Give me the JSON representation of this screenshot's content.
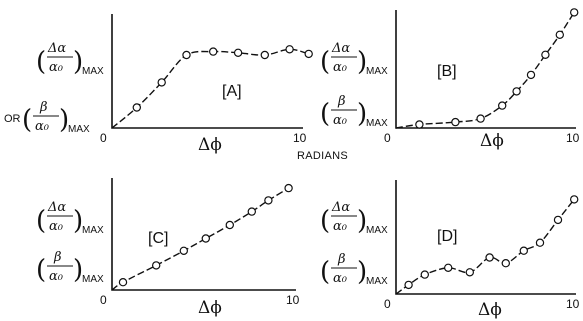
{
  "shared_axis_text": "RADIANS",
  "y_label_parts": {
    "alpha_num": "Δα",
    "alpha_den": "α₀",
    "beta_num": "β",
    "beta_den": "α₀",
    "max": "MAX",
    "or": "OR"
  },
  "chart_data": [
    {
      "type": "line",
      "tag": "[A]",
      "xlabel": "Δϕ",
      "x_tick_labels": [
        "0",
        "10"
      ],
      "xlim": [
        0,
        10
      ],
      "ylim": [
        0,
        1
      ],
      "grid": false,
      "series": [
        {
          "x": [
            0,
            1.3,
            2.6,
            3.9,
            5.3,
            6.6,
            8.0,
            9.3,
            10.3
          ],
          "y": [
            0,
            0.18,
            0.4,
            0.64,
            0.67,
            0.66,
            0.64,
            0.69,
            0.65
          ]
        }
      ]
    },
    {
      "type": "line",
      "tag": "[B]",
      "xlabel": "Δϕ",
      "x_tick_labels": [
        "0",
        "10"
      ],
      "xlim": [
        0,
        10
      ],
      "ylim": [
        0,
        1
      ],
      "grid": false,
      "series": [
        {
          "x": [
            0,
            1.3,
            3.3,
            4.7,
            5.9,
            6.7,
            7.5,
            8.3,
            9.1,
            9.9
          ],
          "y": [
            0,
            0.03,
            0.05,
            0.08,
            0.19,
            0.31,
            0.45,
            0.62,
            0.79,
            0.98
          ]
        }
      ]
    },
    {
      "type": "line",
      "tag": "[C]",
      "xlabel": "Δϕ",
      "x_tick_labels": [
        "0",
        "10"
      ],
      "xlim": [
        0,
        10
      ],
      "ylim": [
        0,
        1
      ],
      "grid": false,
      "series": [
        {
          "x": [
            0,
            0.6,
            2.4,
            3.9,
            5.1,
            6.4,
            7.6,
            8.5,
            9.6
          ],
          "y": [
            0,
            0.07,
            0.22,
            0.35,
            0.46,
            0.58,
            0.7,
            0.8,
            0.91
          ]
        }
      ]
    },
    {
      "type": "line",
      "tag": "[D]",
      "xlabel": "Δϕ",
      "x_tick_labels": [
        "0",
        "10"
      ],
      "xlim": [
        0,
        10
      ],
      "ylim": [
        0,
        1
      ],
      "grid": false,
      "series": [
        {
          "x": [
            0,
            0.7,
            1.6,
            2.9,
            4.1,
            5.2,
            6.1,
            7.1,
            8.0,
            9.0,
            9.9
          ],
          "y": [
            0,
            0.08,
            0.17,
            0.23,
            0.19,
            0.32,
            0.27,
            0.38,
            0.45,
            0.65,
            0.83
          ]
        }
      ]
    }
  ]
}
